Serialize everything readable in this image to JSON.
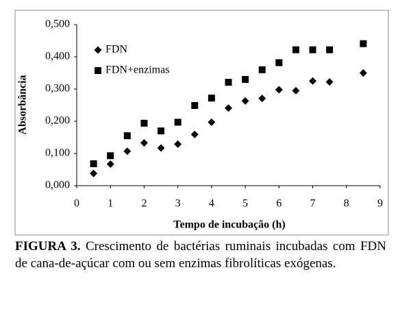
{
  "chart_data": {
    "type": "scatter",
    "x_label": "Tempo de incubação (h)",
    "y_label": "Absorbância",
    "x": [
      0.5,
      1,
      1.5,
      2,
      2.5,
      3,
      3.5,
      4,
      4.5,
      5,
      5.5,
      6,
      6.5,
      7,
      7.5,
      8.5
    ],
    "series": [
      {
        "name": "FDN",
        "color": "#000000",
        "marker": "diamond",
        "values": [
          0.038,
          0.067,
          0.107,
          0.133,
          0.117,
          0.129,
          0.159,
          0.197,
          0.241,
          0.263,
          0.271,
          0.298,
          0.295,
          0.325,
          0.322,
          0.35
        ]
      },
      {
        "name": "FDN+enzimas",
        "color": "#000000",
        "marker": "square",
        "values": [
          0.068,
          0.093,
          0.155,
          0.194,
          0.17,
          0.197,
          0.249,
          0.272,
          0.321,
          0.33,
          0.36,
          0.382,
          0.422,
          0.422,
          0.422,
          0.441
        ]
      }
    ],
    "xlim": [
      0,
      9
    ],
    "xticks": [
      0,
      1,
      2,
      3,
      4,
      5,
      6,
      7,
      8,
      9
    ],
    "ylim": [
      0,
      0.5
    ],
    "yticks": [
      {
        "value": 0,
        "label": "0,000"
      },
      {
        "value": 0.1,
        "label": "0,100"
      },
      {
        "value": 0.2,
        "label": "0,200"
      },
      {
        "value": 0.3,
        "label": "0,300"
      },
      {
        "value": 0.4,
        "label": "0,400"
      },
      {
        "value": 0.5,
        "label": "0,500"
      }
    ],
    "grid": false,
    "legend": "upper left"
  },
  "caption": {
    "label": "FIGURA 3.",
    "text": "Crescimento de bactérias ruminais incubadas com FDN de cana-de-açúcar com ou sem enzimas fibrolíticas exógenas."
  }
}
